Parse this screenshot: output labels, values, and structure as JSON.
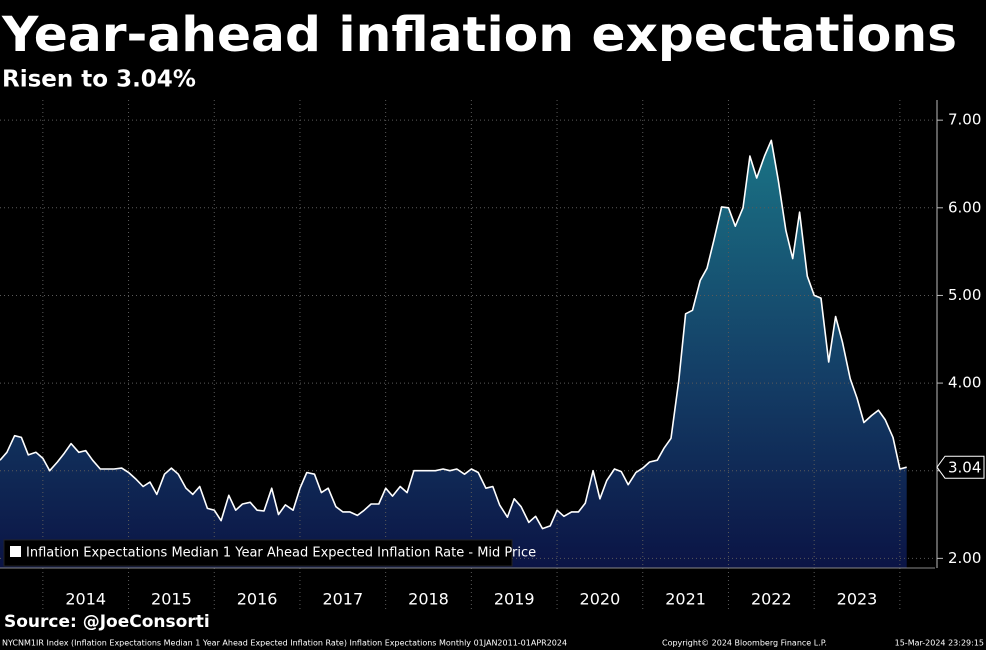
{
  "chart_data": {
    "type": "area",
    "title": "Year-ahead inflation expectations",
    "subtitle": "Risen to 3.04%",
    "source": "Source: @JoeConsorti",
    "footer": [
      "NYCNM1IR Index (Inflation Expectations Median 1 Year Ahead Expected Inflation Rate) Inflation Expectations  Monthly 01JAN2011-01APR2024",
      "Copyright© 2024 Bloomberg Finance L.P.",
      "15-Mar-2024 23:29:15"
    ],
    "x": [
      2013.5,
      2013.58,
      2013.67,
      2013.75,
      2013.83,
      2013.92,
      2014,
      2014.08,
      2014.17,
      2014.25,
      2014.33,
      2014.42,
      2014.5,
      2014.58,
      2014.67,
      2014.75,
      2014.83,
      2014.92,
      2015,
      2015.08,
      2015.17,
      2015.25,
      2015.33,
      2015.42,
      2015.5,
      2015.58,
      2015.67,
      2015.75,
      2015.83,
      2015.92,
      2016,
      2016.08,
      2016.17,
      2016.25,
      2016.33,
      2016.42,
      2016.5,
      2016.58,
      2016.67,
      2016.75,
      2016.83,
      2016.92,
      2017,
      2017.08,
      2017.17,
      2017.25,
      2017.33,
      2017.42,
      2017.5,
      2017.58,
      2017.67,
      2017.75,
      2017.83,
      2017.92,
      2018,
      2018.08,
      2018.17,
      2018.25,
      2018.33,
      2018.42,
      2018.5,
      2018.58,
      2018.67,
      2018.75,
      2018.83,
      2018.92,
      2019,
      2019.08,
      2019.17,
      2019.25,
      2019.33,
      2019.42,
      2019.5,
      2019.58,
      2019.67,
      2019.75,
      2019.83,
      2019.92,
      2020,
      2020.08,
      2020.17,
      2020.25,
      2020.33,
      2020.42,
      2020.5,
      2020.58,
      2020.67,
      2020.75,
      2020.83,
      2020.92,
      2021,
      2021.08,
      2021.17,
      2021.25,
      2021.33,
      2021.42,
      2021.5,
      2021.58,
      2021.67,
      2021.75,
      2021.83,
      2021.92,
      2022,
      2022.08,
      2022.17,
      2022.25,
      2022.33,
      2022.42,
      2022.5,
      2022.58,
      2022.67,
      2022.75,
      2022.83,
      2022.92,
      2023,
      2023.08,
      2023.17,
      2023.25,
      2023.33,
      2023.42,
      2023.5,
      2023.58,
      2023.67,
      2023.75,
      2023.83,
      2023.92,
      2024,
      2024.08
    ],
    "series": [
      {
        "name": "Inflation Expectations Median 1 Year Ahead Expected Inflation Rate - Mid Price",
        "color": "#ffffff",
        "values": [
          3.12,
          3.21,
          3.4,
          3.38,
          3.18,
          3.21,
          3.14,
          3.0,
          3.1,
          3.2,
          3.31,
          3.21,
          3.23,
          3.12,
          3.02,
          3.02,
          3.02,
          3.03,
          2.98,
          2.91,
          2.82,
          2.87,
          2.73,
          2.96,
          3.03,
          2.96,
          2.8,
          2.73,
          2.82,
          2.57,
          2.55,
          2.43,
          2.72,
          2.55,
          2.62,
          2.64,
          2.55,
          2.54,
          2.8,
          2.5,
          2.61,
          2.55,
          2.8,
          2.98,
          2.96,
          2.75,
          2.8,
          2.59,
          2.53,
          2.53,
          2.49,
          2.55,
          2.62,
          2.62,
          2.8,
          2.71,
          2.82,
          2.75,
          3.0,
          3.0,
          3.0,
          3.0,
          3.02,
          3.0,
          3.02,
          2.96,
          3.02,
          2.98,
          2.8,
          2.82,
          2.61,
          2.47,
          2.68,
          2.59,
          2.41,
          2.48,
          2.34,
          2.37,
          2.55,
          2.48,
          2.53,
          2.53,
          2.63,
          3.0,
          2.68,
          2.89,
          3.02,
          2.99,
          2.84,
          2.98,
          3.03,
          3.1,
          3.12,
          3.26,
          3.37,
          4.03,
          4.79,
          4.83,
          5.17,
          5.31,
          5.63,
          6.01,
          6.0,
          5.79,
          6.0,
          6.59,
          6.34,
          6.59,
          6.77,
          6.32,
          5.74,
          5.42,
          5.95,
          5.22,
          5.0,
          4.97,
          4.24,
          4.76,
          4.47,
          4.05,
          3.83,
          3.55,
          3.63,
          3.69,
          3.58,
          3.38,
          3.02,
          3.04
        ]
      }
    ],
    "xlim": [
      2013.5,
      2024.41
    ],
    "xticks": [
      2014,
      2015,
      2016,
      2017,
      2018,
      2019,
      2020,
      2021,
      2022,
      2023
    ],
    "ylim": [
      1.89,
      7.23
    ],
    "yticks": [
      {
        "value": 2,
        "label": "2.00"
      },
      {
        "value": 3,
        "label": "3.00"
      },
      {
        "value": 4,
        "label": "4.00"
      },
      {
        "value": 5,
        "label": "5.00"
      },
      {
        "value": 6,
        "label": "6.00"
      },
      {
        "value": 7,
        "label": "7.00"
      }
    ],
    "grid": true,
    "legend": "bottom-left"
  }
}
